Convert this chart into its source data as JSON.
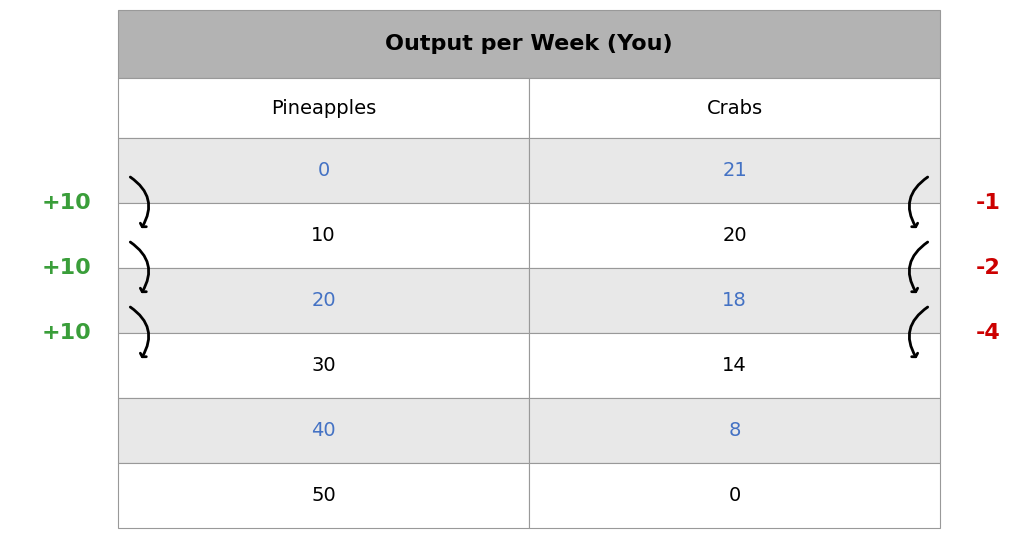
{
  "title": "Output per Week (You)",
  "col1_header": "Pineapples",
  "col2_header": "Crabs",
  "pineapples": [
    0,
    10,
    20,
    30,
    40,
    50
  ],
  "crabs": [
    21,
    20,
    18,
    14,
    8,
    0
  ],
  "highlighted_rows": [
    0,
    2,
    4
  ],
  "title_bg": "#b3b3b3",
  "header_bg": "#ffffff",
  "row_bg_light": "#e8e8e8",
  "row_bg_white": "#ffffff",
  "title_color": "#000000",
  "header_color": "#000000",
  "highlighted_value_color": "#4472c4",
  "normal_value_color": "#000000",
  "green_label_color": "#3a9e3a",
  "red_label_color": "#cc0000",
  "left_labels": [
    "+10",
    "+10",
    "+10"
  ],
  "right_labels": [
    "-1",
    "-2",
    "-4"
  ],
  "arrow_color": "#000000",
  "title_fontsize": 16,
  "header_fontsize": 14,
  "cell_fontsize": 14,
  "annot_fontsize": 16
}
